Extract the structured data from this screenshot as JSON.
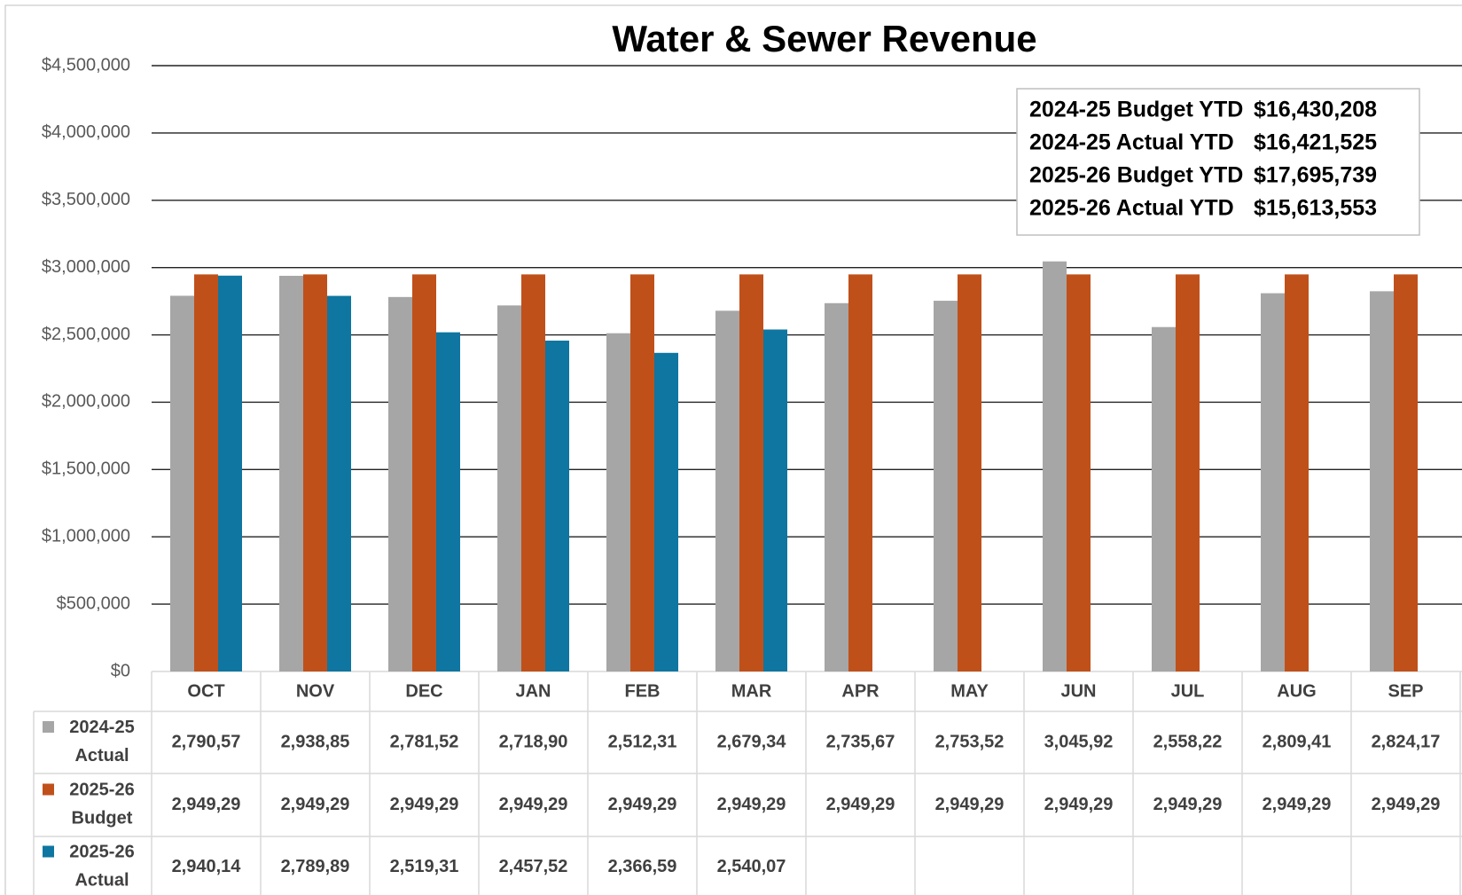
{
  "chart_data": {
    "type": "bar",
    "title": "Water & Sewer Revenue",
    "categories": [
      "OCT",
      "NOV",
      "DEC",
      "JAN",
      "FEB",
      "MAR",
      "APR",
      "MAY",
      "JUN",
      "JUL",
      "AUG",
      "SEP"
    ],
    "series": [
      {
        "name": "2024-25 Actual",
        "color": "#a6a6a6",
        "values": [
          2790570,
          2938850,
          2781520,
          2718900,
          2512310,
          2679340,
          2735670,
          2753520,
          3045920,
          2558220,
          2809410,
          2824170
        ],
        "value_labels": [
          "2,790,57",
          "2,938,85",
          "2,781,52",
          "2,718,90",
          "2,512,31",
          "2,679,34",
          "2,735,67",
          "2,753,52",
          "3,045,92",
          "2,558,22",
          "2,809,41",
          "2,824,17"
        ]
      },
      {
        "name": "2025-26 Budget",
        "color": "#c0501a",
        "values": [
          2949290,
          2949290,
          2949290,
          2949290,
          2949290,
          2949290,
          2949290,
          2949290,
          2949290,
          2949290,
          2949290,
          2949290
        ],
        "value_labels": [
          "2,949,29",
          "2,949,29",
          "2,949,29",
          "2,949,29",
          "2,949,29",
          "2,949,29",
          "2,949,29",
          "2,949,29",
          "2,949,29",
          "2,949,29",
          "2,949,29",
          "2,949,29"
        ]
      },
      {
        "name": "2025-26 Actual",
        "color": "#0e76a0",
        "values": [
          2940140,
          2789890,
          2519310,
          2457520,
          2366590,
          2540070,
          null,
          null,
          null,
          null,
          null,
          null
        ],
        "value_labels": [
          "2,940,14",
          "2,789,89",
          "2,519,31",
          "2,457,52",
          "2,366,59",
          "2,540,07",
          null,
          null,
          null,
          null,
          null,
          null
        ]
      }
    ],
    "ylim": [
      0,
      4500000
    ],
    "yticks": [
      {
        "value": 0,
        "label": "$0"
      },
      {
        "value": 500000,
        "label": "$500,000"
      },
      {
        "value": 1000000,
        "label": "$1,000,000"
      },
      {
        "value": 1500000,
        "label": "$1,500,000"
      },
      {
        "value": 2000000,
        "label": "$2,000,000"
      },
      {
        "value": 2500000,
        "label": "$2,500,000"
      },
      {
        "value": 3000000,
        "label": "$3,000,000"
      },
      {
        "value": 3500000,
        "label": "$3,500,000"
      },
      {
        "value": 4000000,
        "label": "$4,000,000"
      },
      {
        "value": 4500000,
        "label": "$4,500,000"
      }
    ],
    "grid": true,
    "annotations": [
      {
        "label": "2024-25 Budget YTD",
        "value": "$16,430,208"
      },
      {
        "label": "2024-25 Actual YTD",
        "value": "$16,421,525"
      },
      {
        "label": "2025-26 Budget YTD",
        "value": "$17,695,739"
      },
      {
        "label": "2025-26 Actual YTD",
        "value": "$15,613,553"
      }
    ]
  }
}
